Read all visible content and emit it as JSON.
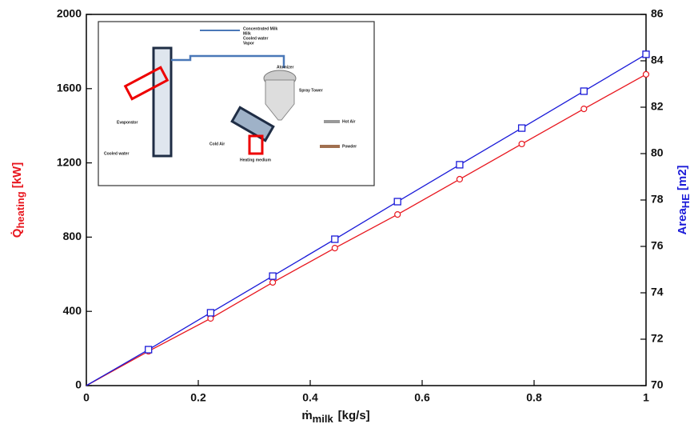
{
  "chart_data": {
    "type": "line",
    "x": [
      0,
      0.111,
      0.222,
      0.333,
      0.444,
      0.556,
      0.667,
      0.778,
      0.889,
      1
    ],
    "series": [
      {
        "name": "Q̇heating",
        "color": "#e8161e",
        "marker": "circle",
        "values": [
          0,
          185,
          362,
          556,
          741,
          922,
          1112,
          1302,
          1491,
          1677
        ]
      },
      {
        "name": "AreaHE",
        "color": "#1a1ad8",
        "marker": "square",
        "axis": "y2",
        "values": [
          70,
          71.55,
          73.14,
          74.72,
          76.31,
          77.93,
          79.52,
          81.1,
          82.69,
          84.28
        ]
      }
    ],
    "xlim": [
      0,
      1
    ],
    "xticks": [
      0,
      0.2,
      0.4,
      0.6,
      0.8,
      1
    ],
    "ylim": [
      0,
      2000
    ],
    "yticks": [
      0,
      400,
      800,
      1200,
      1600,
      2000
    ],
    "y2lim": [
      70,
      86
    ],
    "y2ticks": [
      70,
      72,
      74,
      76,
      78,
      80,
      82,
      84,
      86
    ],
    "xlabel": {
      "main": "ṁ",
      "sub": "milk",
      "unit": "[kg/s]"
    },
    "ylabel": {
      "main": "Q̇",
      "sub": "heating",
      "unit": "[kW]"
    },
    "y2label": {
      "main": "Area",
      "sub": "HE",
      "unit": "[m2]"
    },
    "inset_labels": [
      "Concentrated Milk",
      "Milk",
      "Cooled water",
      "Vapor",
      "Atomizer",
      "Spray Tower",
      "Hot Air",
      "Powder",
      "Evaporator",
      "Cold Air",
      "Heating medium",
      "Cooled water"
    ]
  }
}
